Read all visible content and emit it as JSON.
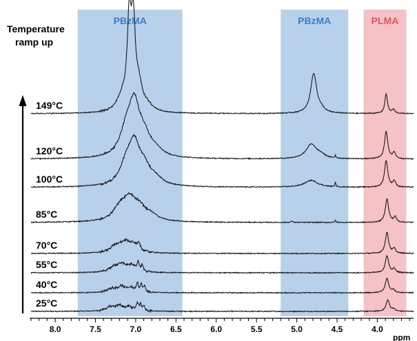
{
  "chart_data": {
    "type": "line",
    "title": "",
    "annotation": "Temperature\nramp up",
    "xlabel": "ppm",
    "xlim": [
      8.3,
      3.55
    ],
    "x_reversed": true,
    "xticks": [
      8.0,
      7.5,
      7.0,
      6.5,
      6.0,
      5.5,
      5.0,
      4.5,
      4.0
    ],
    "xtick_labels": [
      "8.0",
      "7.5",
      "7.0",
      "6.5",
      "6.0",
      "5.5",
      "5.0",
      "4.5",
      "4.0"
    ],
    "grid": false,
    "bands": [
      {
        "label": "PBzMA",
        "from": 7.72,
        "to": 6.42,
        "color": "#b8d1ea",
        "label_color": "#3a7fc4"
      },
      {
        "label": "PBzMA",
        "from": 5.2,
        "to": 4.36,
        "color": "#b8d1ea",
        "label_color": "#3a7fc4"
      },
      {
        "label": "PLMA",
        "from": 4.17,
        "to": 3.64,
        "color": "#f5c2c5",
        "label_color": "#e0575e"
      }
    ],
    "arrow_direction": "up",
    "series": [
      {
        "name": "25°C",
        "peaks": [
          {
            "x": 7.32,
            "h": 0.1,
            "w": 0.06
          },
          {
            "x": 7.2,
            "h": 0.14,
            "w": 0.06
          },
          {
            "x": 7.08,
            "h": 0.1,
            "w": 0.05
          },
          {
            "x": 6.98,
            "h": 0.2,
            "w": 0.015
          },
          {
            "x": 6.94,
            "h": 0.16,
            "w": 0.015
          },
          {
            "x": 6.9,
            "h": 0.14,
            "w": 0.015
          },
          {
            "x": 3.87,
            "h": 0.3,
            "w": 0.025
          },
          {
            "x": 3.8,
            "h": 0.06,
            "w": 0.02
          }
        ]
      },
      {
        "name": "40°C",
        "peaks": [
          {
            "x": 7.3,
            "h": 0.1,
            "w": 0.06
          },
          {
            "x": 7.18,
            "h": 0.15,
            "w": 0.06
          },
          {
            "x": 7.06,
            "h": 0.12,
            "w": 0.05
          },
          {
            "x": 6.98,
            "h": 0.22,
            "w": 0.015
          },
          {
            "x": 6.93,
            "h": 0.18,
            "w": 0.015
          },
          {
            "x": 6.89,
            "h": 0.14,
            "w": 0.015
          },
          {
            "x": 3.88,
            "h": 0.38,
            "w": 0.025
          },
          {
            "x": 3.8,
            "h": 0.08,
            "w": 0.02
          }
        ]
      },
      {
        "name": "55°C",
        "peaks": [
          {
            "x": 7.28,
            "h": 0.12,
            "w": 0.07
          },
          {
            "x": 7.17,
            "h": 0.2,
            "w": 0.07
          },
          {
            "x": 7.05,
            "h": 0.16,
            "w": 0.06
          },
          {
            "x": 6.97,
            "h": 0.22,
            "w": 0.015
          },
          {
            "x": 6.92,
            "h": 0.16,
            "w": 0.015
          },
          {
            "x": 3.88,
            "h": 0.45,
            "w": 0.025
          },
          {
            "x": 3.79,
            "h": 0.1,
            "w": 0.02
          }
        ]
      },
      {
        "name": "70°C",
        "peaks": [
          {
            "x": 7.25,
            "h": 0.16,
            "w": 0.08
          },
          {
            "x": 7.13,
            "h": 0.26,
            "w": 0.08
          },
          {
            "x": 7.02,
            "h": 0.18,
            "w": 0.07
          },
          {
            "x": 6.96,
            "h": 0.16,
            "w": 0.015
          },
          {
            "x": 3.88,
            "h": 0.55,
            "w": 0.025
          },
          {
            "x": 3.79,
            "h": 0.12,
            "w": 0.02
          }
        ]
      },
      {
        "name": "85°C",
        "peaks": [
          {
            "x": 7.2,
            "h": 0.3,
            "w": 0.1
          },
          {
            "x": 7.08,
            "h": 0.52,
            "w": 0.1
          },
          {
            "x": 6.95,
            "h": 0.3,
            "w": 0.1
          },
          {
            "x": 6.8,
            "h": 0.12,
            "w": 0.1
          },
          {
            "x": 5.06,
            "h": 0.04,
            "w": 0.01
          },
          {
            "x": 4.52,
            "h": 0.05,
            "w": 0.008
          },
          {
            "x": 3.88,
            "h": 0.62,
            "w": 0.025
          },
          {
            "x": 3.78,
            "h": 0.14,
            "w": 0.02
          }
        ]
      },
      {
        "name": "100°C",
        "peaks": [
          {
            "x": 7.12,
            "h": 0.5,
            "w": 0.09
          },
          {
            "x": 7.02,
            "h": 0.95,
            "w": 0.08
          },
          {
            "x": 6.9,
            "h": 0.45,
            "w": 0.1
          },
          {
            "x": 6.75,
            "h": 0.15,
            "w": 0.1
          },
          {
            "x": 4.82,
            "h": 0.18,
            "w": 0.1
          },
          {
            "x": 4.52,
            "h": 0.12,
            "w": 0.006
          },
          {
            "x": 3.89,
            "h": 0.7,
            "w": 0.025
          },
          {
            "x": 3.79,
            "h": 0.16,
            "w": 0.02
          }
        ]
      },
      {
        "name": "120°C",
        "peaks": [
          {
            "x": 7.12,
            "h": 0.6,
            "w": 0.09
          },
          {
            "x": 7.02,
            "h": 1.25,
            "w": 0.08
          },
          {
            "x": 6.9,
            "h": 0.5,
            "w": 0.1
          },
          {
            "x": 6.75,
            "h": 0.15,
            "w": 0.1
          },
          {
            "x": 4.82,
            "h": 0.38,
            "w": 0.08
          },
          {
            "x": 4.7,
            "h": 0.08,
            "w": 0.06
          },
          {
            "x": 4.52,
            "h": 0.08,
            "w": 0.006
          },
          {
            "x": 3.89,
            "h": 0.72,
            "w": 0.025
          },
          {
            "x": 3.79,
            "h": 0.16,
            "w": 0.02
          }
        ]
      },
      {
        "name": "149°C",
        "peaks": [
          {
            "x": 7.17,
            "h": 0.35,
            "w": 0.08
          },
          {
            "x": 7.08,
            "h": 2.25,
            "w": 0.03
          },
          {
            "x": 7.03,
            "h": 2.15,
            "w": 0.03
          },
          {
            "x": 6.96,
            "h": 0.6,
            "w": 0.05
          },
          {
            "x": 6.85,
            "h": 0.15,
            "w": 0.08
          },
          {
            "x": 4.79,
            "h": 1.05,
            "w": 0.045
          },
          {
            "x": 4.7,
            "h": 0.08,
            "w": 0.05
          },
          {
            "x": 3.89,
            "h": 0.52,
            "w": 0.02
          },
          {
            "x": 3.8,
            "h": 0.1,
            "w": 0.02
          }
        ]
      }
    ]
  }
}
